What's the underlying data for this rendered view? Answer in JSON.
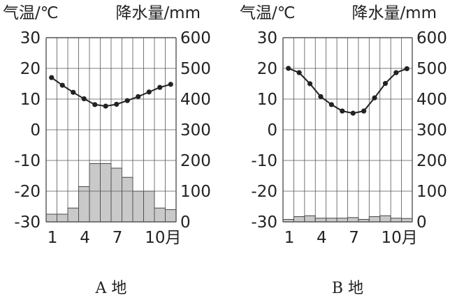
{
  "chart_data": [
    {
      "type": "bar+line",
      "title": "A 地",
      "left_axis_label": "气温/℃",
      "right_axis_label": "降水量/mm",
      "temp_ticks": [
        "30",
        "20",
        "10",
        "0",
        "-10",
        "-20",
        "-30"
      ],
      "precip_ticks": [
        "600",
        "500",
        "400",
        "300",
        "200",
        "100",
        "0"
      ],
      "ylim_temp": [
        -30,
        30
      ],
      "ylim_precip": [
        0,
        600
      ],
      "x_tick_labels": [
        "1",
        "4",
        "7",
        "10月"
      ],
      "x_tick_months": [
        1,
        4,
        7,
        10
      ],
      "months": [
        1,
        2,
        3,
        4,
        5,
        6,
        7,
        8,
        9,
        10,
        11,
        12
      ],
      "temperature": [
        17,
        14.5,
        12.2,
        10.1,
        8.2,
        7.7,
        8.3,
        9.5,
        10.8,
        12.3,
        13.8,
        14.8
      ],
      "precipitation": [
        25,
        25,
        45,
        115,
        190,
        190,
        175,
        145,
        100,
        100,
        45,
        40
      ],
      "grid": true
    },
    {
      "type": "bar+line",
      "title": "B 地",
      "left_axis_label": "气温/℃",
      "right_axis_label": "降水量/mm",
      "temp_ticks": [
        "30",
        "20",
        "10",
        "0",
        "-10",
        "-20",
        "-30"
      ],
      "precip_ticks": [
        "600",
        "500",
        "400",
        "300",
        "200",
        "100",
        "0"
      ],
      "ylim_temp": [
        -30,
        30
      ],
      "ylim_precip": [
        0,
        600
      ],
      "x_tick_labels": [
        "1",
        "4",
        "7",
        "10月"
      ],
      "x_tick_months": [
        1,
        4,
        7,
        10
      ],
      "months": [
        1,
        2,
        3,
        4,
        5,
        6,
        7,
        8,
        9,
        10,
        11,
        12
      ],
      "temperature": [
        20,
        18.6,
        15,
        10.8,
        8.2,
        6.1,
        5.4,
        6.1,
        10.4,
        15.1,
        18.6,
        19.9
      ],
      "precipitation": [
        8,
        17,
        20,
        12,
        12,
        12,
        14,
        8,
        17,
        20,
        12,
        11
      ],
      "grid": true
    }
  ]
}
